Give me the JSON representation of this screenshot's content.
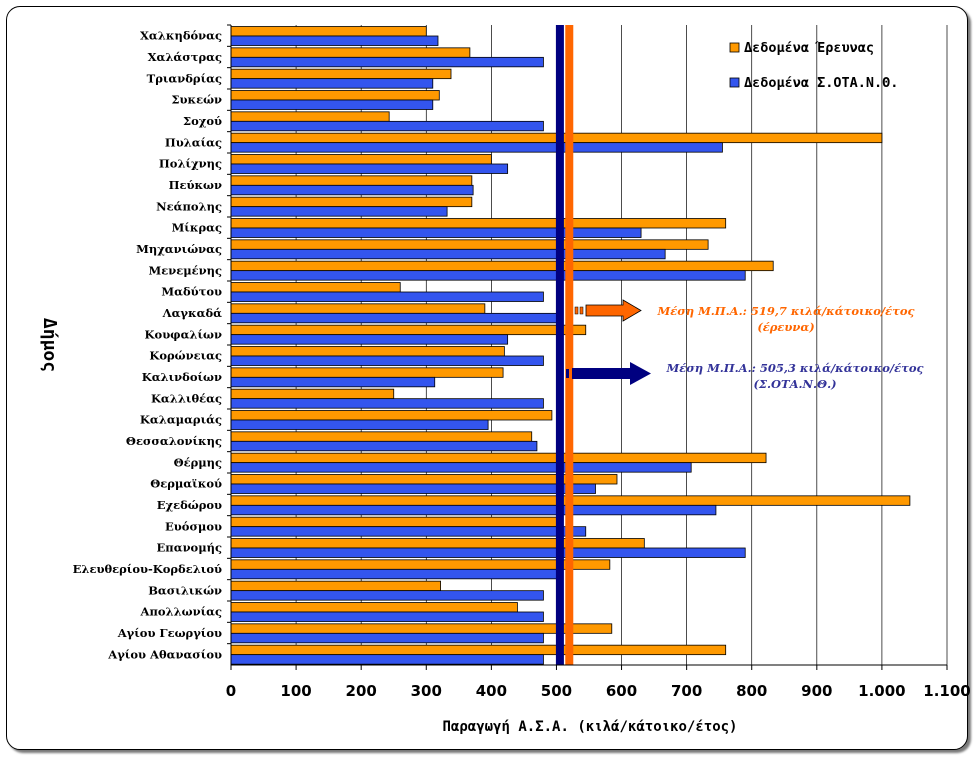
{
  "chart_data": {
    "type": "bar",
    "orientation": "horizontal",
    "xlabel": "Παραγωγή Α.Σ.Α. (κιλά/κάτοικο/έτος)",
    "ylabel": "Δήμος",
    "xlim": [
      0,
      1100
    ],
    "xticks": [
      "0",
      "100",
      "200",
      "300",
      "400",
      "500",
      "600",
      "700",
      "800",
      "900",
      "1.000",
      "1.100"
    ],
    "grid": "vertical",
    "legend_position": "top-right",
    "categories": [
      "Χαλκηδόνας",
      "Χαλάστρας",
      "Τριανδρίας",
      "Συκεών",
      "Σοχού",
      "Πυλαίας",
      "Πολίχνης",
      "Πεύκων",
      "Νεάπολης",
      "Μίκρας",
      "Μηχανιώνας",
      "Μενεμένης",
      "Μαδύτου",
      "Λαγκαδά",
      "Κουφαλίων",
      "Κορώνειας",
      "Καλινδοίων",
      "Καλλιθέας",
      "Καλαμαριάς",
      "Θεσσαλονίκης",
      "Θέρμης",
      "Θερμαϊκού",
      "Εχεδώρου",
      "Ευόσμου",
      "Επανομής",
      "Ελευθερίου-Κορδελιού",
      "Βασιλικών",
      "Απολλωνίας",
      "Αγίου Γεωργίου",
      "Αγίου Αθανασίου"
    ],
    "series": [
      {
        "name": "Δεδομένα Έρευνας",
        "color": "#ff9900",
        "values": [
          300,
          367,
          338,
          320,
          243,
          1000,
          400,
          370,
          370,
          760,
          733,
          833,
          260,
          390,
          545,
          420,
          418,
          250,
          493,
          462,
          822,
          593,
          1043,
          500,
          635,
          582,
          322,
          440,
          585,
          760
        ]
      },
      {
        "name": "Δεδομένα Σ.ΟΤΑ.Ν.Θ.",
        "color": "#3355ee",
        "values": [
          318,
          480,
          310,
          310,
          480,
          755,
          425,
          372,
          332,
          630,
          667,
          790,
          480,
          500,
          425,
          480,
          313,
          480,
          395,
          470,
          707,
          560,
          745,
          545,
          790,
          500,
          480,
          480,
          480,
          480
        ]
      }
    ],
    "reference_lines": [
      {
        "value": 505.3,
        "color": "#000080"
      },
      {
        "value": 519.7,
        "color": "#ff6600"
      }
    ],
    "annotations": [
      {
        "line1": "Μέση Μ.Π.Α.: 519,7 κιλά/κάτοικο/έτος",
        "line2": "(έρευνα)",
        "color": "#ff6600"
      },
      {
        "line1": "Μέση Μ.Π.Α.: 505,3 κιλά/κάτοικο/έτος",
        "line2": "(Σ.ΟΤΑ.Ν.Θ.)",
        "color": "#333399"
      }
    ]
  }
}
